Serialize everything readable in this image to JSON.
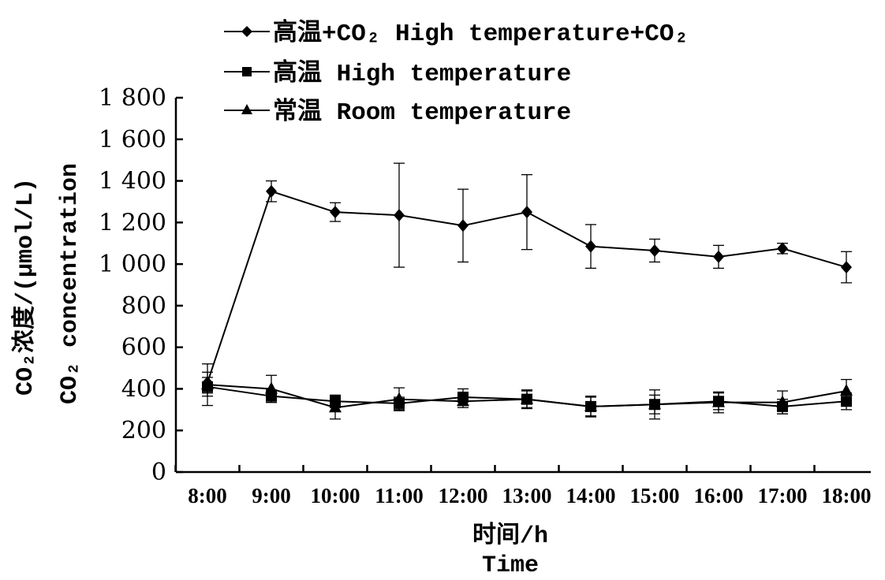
{
  "chart_data": {
    "type": "line",
    "categories": [
      "8:00",
      "9:00",
      "10:00",
      "11:00",
      "12:00",
      "13:00",
      "14:00",
      "15:00",
      "16:00",
      "17:00",
      "18:00"
    ],
    "y_ticks": [
      "0",
      "200",
      "400",
      "600",
      "800",
      "1 000",
      "1 200",
      "1 400",
      "1 600",
      "1 800"
    ],
    "ylim": [
      0,
      1800
    ],
    "xlabel_line1": "时间/h",
    "xlabel_line2": "Time",
    "ylabel_line1": "CO₂浓度/(μmol/L)",
    "ylabel_line2": "CO₂ concentration",
    "legend_position": "top",
    "series": [
      {
        "name": "高温+CO₂ High temperature+CO₂",
        "marker": "diamond",
        "values": [
          430,
          1350,
          1250,
          1235,
          1185,
          1250,
          1085,
          1065,
          1035,
          1075,
          985
        ],
        "errors": [
          50,
          50,
          45,
          250,
          175,
          180,
          105,
          55,
          55,
          25,
          75
        ]
      },
      {
        "name": "高温 High temperature",
        "marker": "square",
        "values": [
          410,
          365,
          340,
          330,
          360,
          350,
          315,
          325,
          340,
          315,
          340
        ],
        "errors": [
          45,
          30,
          30,
          30,
          40,
          40,
          45,
          45,
          40,
          35,
          40
        ]
      },
      {
        "name": "常温 Room temperature",
        "marker": "triangle",
        "values": [
          420,
          400,
          310,
          350,
          340,
          350,
          315,
          325,
          335,
          335,
          390
        ],
        "errors": [
          100,
          65,
          55,
          55,
          30,
          45,
          50,
          70,
          50,
          55,
          55
        ]
      }
    ]
  }
}
